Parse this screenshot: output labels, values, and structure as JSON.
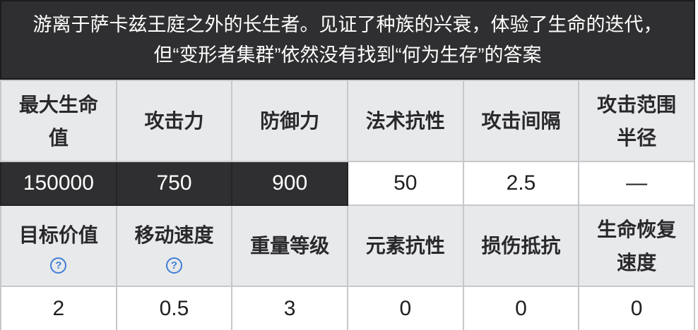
{
  "banner": {
    "text": "游离于萨卡兹王庭之外的长生者。见证了种族的兴衰，体验了生命的迭代，但“变形者集群”依然没有找到“何为生存”的答案"
  },
  "stats_table": {
    "header_row_1": [
      "最大生命值",
      "攻击力",
      "防御力",
      "法术抗性",
      "攻击间隔",
      "攻击范围半径"
    ],
    "value_row_1": [
      "150000",
      "750",
      "900",
      "50",
      "2.5",
      "—"
    ],
    "header_row_2": [
      "目标价值",
      "移动速度",
      "重量等级",
      "元素抗性",
      "损伤抵抗",
      "生命恢复速度"
    ],
    "value_row_2": [
      "2",
      "0.5",
      "3",
      "0",
      "0",
      "0"
    ]
  },
  "icons": {
    "help": "?"
  },
  "colors": {
    "banner_bg": "#2f2f31",
    "banner_border": "#1b1b1d",
    "dark_cell_bg": "#2f2f31",
    "header_cell_bg": "#e8e9eb",
    "border_light": "#c6c8cb",
    "help_blue": "#3f7dd6",
    "text_dark": "#202022",
    "text_white": "#ffffff"
  }
}
